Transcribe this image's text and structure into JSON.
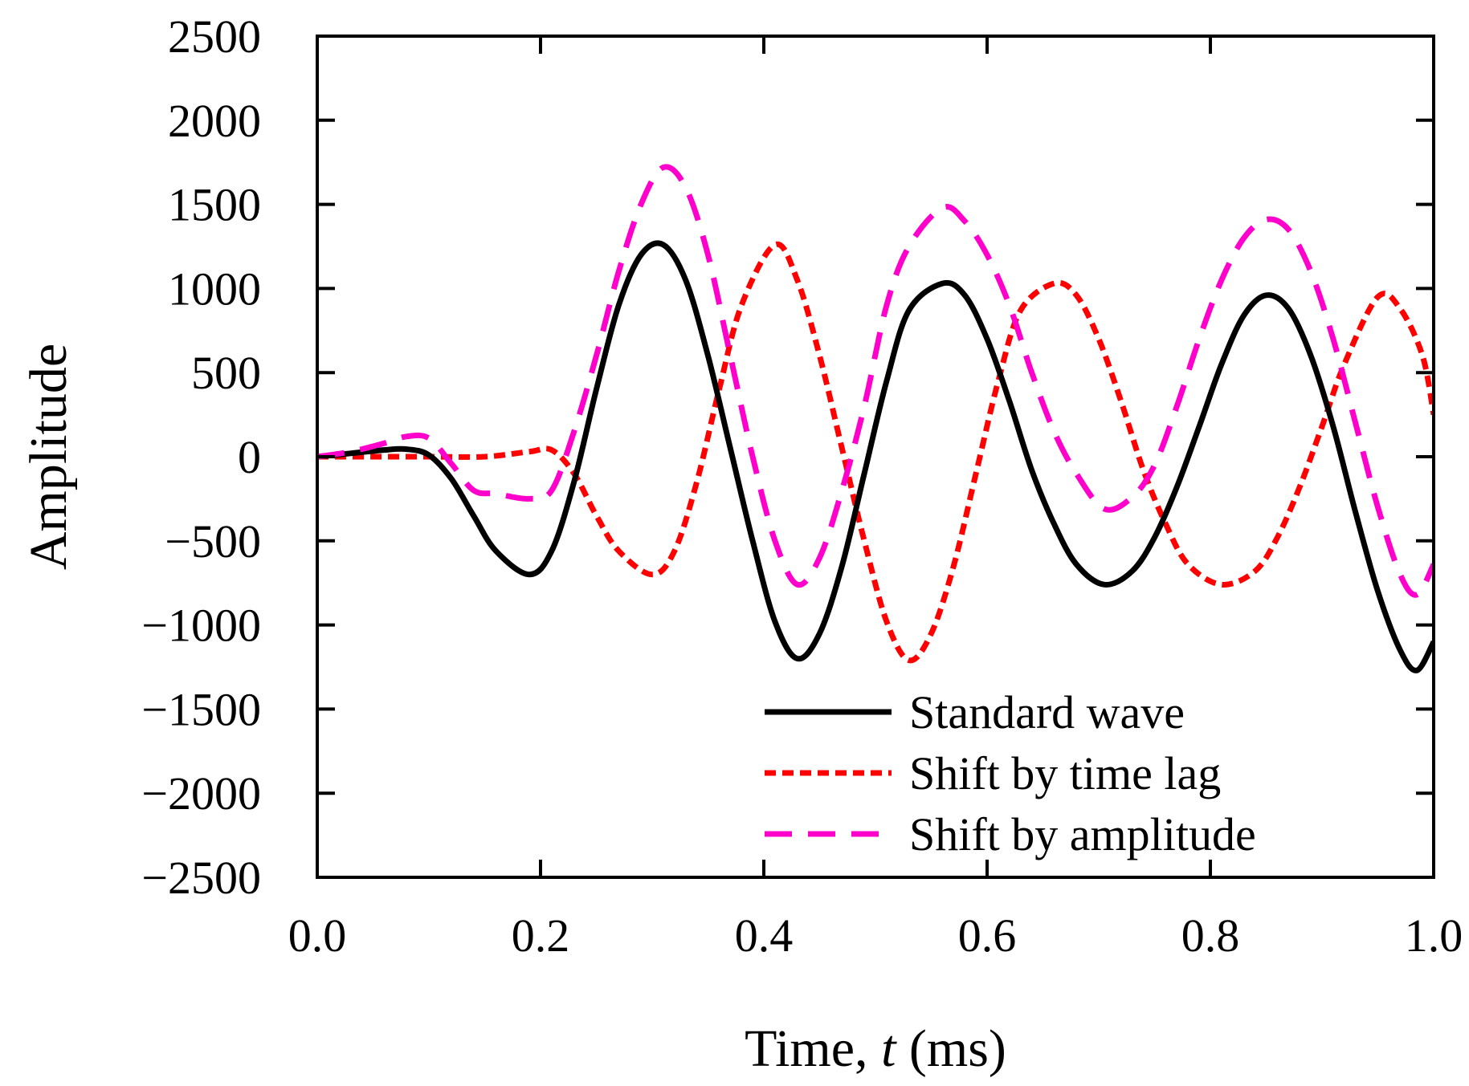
{
  "chart_data": {
    "type": "line",
    "title": "",
    "xlabel_prefix": "Time, ",
    "xlabel_var": "t",
    "xlabel_suffix": " (ms)",
    "ylabel": "Amplitude",
    "xlim": [
      0.0,
      1.0
    ],
    "ylim": [
      -2500,
      2500
    ],
    "xticks": [
      0.0,
      0.2,
      0.4,
      0.6,
      0.8,
      1.0
    ],
    "xtick_labels": [
      "0.0",
      "0.2",
      "0.4",
      "0.6",
      "0.8",
      "1.0"
    ],
    "yticks": [
      2500,
      2000,
      1500,
      1000,
      500,
      0,
      -500,
      -1000,
      -1500,
      -2000,
      -2500
    ],
    "ytick_labels": [
      "2500",
      "2000",
      "1500",
      "1000",
      "500",
      "0",
      "−500",
      "−1000",
      "−1500",
      "−2000",
      "−2500"
    ],
    "grid": false,
    "legend_position": "bottom-right",
    "series": [
      {
        "name": "Standard wave",
        "color": "#000000",
        "style": "solid",
        "x": [
          0.0,
          0.03,
          0.06,
          0.08,
          0.1,
          0.12,
          0.14,
          0.16,
          0.19,
          0.21,
          0.23,
          0.25,
          0.27,
          0.29,
          0.31,
          0.33,
          0.35,
          0.37,
          0.39,
          0.41,
          0.43,
          0.45,
          0.47,
          0.49,
          0.51,
          0.53,
          0.56,
          0.58,
          0.6,
          0.62,
          0.64,
          0.66,
          0.68,
          0.705,
          0.73,
          0.75,
          0.77,
          0.79,
          0.81,
          0.83,
          0.85,
          0.87,
          0.89,
          0.91,
          0.93,
          0.95,
          0.97,
          0.985,
          1.0
        ],
        "y": [
          0,
          20,
          40,
          45,
          10,
          -130,
          -350,
          -560,
          -700,
          -560,
          -150,
          400,
          900,
          1200,
          1260,
          1050,
          600,
          50,
          -500,
          -980,
          -1200,
          -1050,
          -650,
          -100,
          450,
          870,
          1030,
          960,
          700,
          330,
          -80,
          -400,
          -640,
          -760,
          -680,
          -480,
          -180,
          180,
          550,
          840,
          960,
          880,
          600,
          180,
          -330,
          -800,
          -1150,
          -1270,
          -1100
        ]
      },
      {
        "name": "Shift by time lag",
        "color": "#ff0000",
        "style": "dotted",
        "x": [
          0.0,
          0.05,
          0.1,
          0.15,
          0.19,
          0.21,
          0.23,
          0.25,
          0.27,
          0.3,
          0.32,
          0.34,
          0.36,
          0.38,
          0.41,
          0.43,
          0.45,
          0.47,
          0.49,
          0.51,
          0.53,
          0.55,
          0.57,
          0.59,
          0.61,
          0.63,
          0.66,
          0.68,
          0.7,
          0.72,
          0.74,
          0.76,
          0.78,
          0.81,
          0.84,
          0.86,
          0.88,
          0.9,
          0.92,
          0.95,
          0.97,
          0.99,
          1.0
        ],
        "y": [
          0,
          0,
          0,
          0,
          30,
          40,
          -100,
          -350,
          -560,
          -700,
          -560,
          -150,
          400,
          900,
          1260,
          1050,
          600,
          50,
          -500,
          -980,
          -1210,
          -1050,
          -650,
          -100,
          450,
          870,
          1030,
          960,
          700,
          330,
          -80,
          -400,
          -640,
          -760,
          -680,
          -480,
          -180,
          180,
          550,
          950,
          880,
          600,
          250
        ]
      },
      {
        "name": "Shift by amplitude",
        "color": "#ff00cc",
        "style": "dashed",
        "x": [
          0.0,
          0.03,
          0.06,
          0.08,
          0.1,
          0.12,
          0.14,
          0.16,
          0.19,
          0.21,
          0.23,
          0.25,
          0.27,
          0.29,
          0.31,
          0.33,
          0.35,
          0.37,
          0.39,
          0.41,
          0.43,
          0.45,
          0.47,
          0.49,
          0.51,
          0.53,
          0.56,
          0.58,
          0.6,
          0.62,
          0.64,
          0.66,
          0.68,
          0.705,
          0.73,
          0.75,
          0.77,
          0.79,
          0.81,
          0.83,
          0.85,
          0.87,
          0.89,
          0.91,
          0.93,
          0.95,
          0.97,
          0.985,
          1.0
        ],
        "y": [
          0,
          30,
          80,
          120,
          110,
          -40,
          -200,
          -220,
          -250,
          -200,
          150,
          600,
          1100,
          1500,
          1720,
          1600,
          1200,
          600,
          0,
          -500,
          -760,
          -600,
          -200,
          300,
          900,
          1250,
          1480,
          1400,
          1200,
          900,
          500,
          150,
          -100,
          -310,
          -240,
          -50,
          300,
          700,
          1050,
          1300,
          1410,
          1350,
          1100,
          700,
          200,
          -300,
          -700,
          -820,
          -640
        ]
      }
    ]
  }
}
